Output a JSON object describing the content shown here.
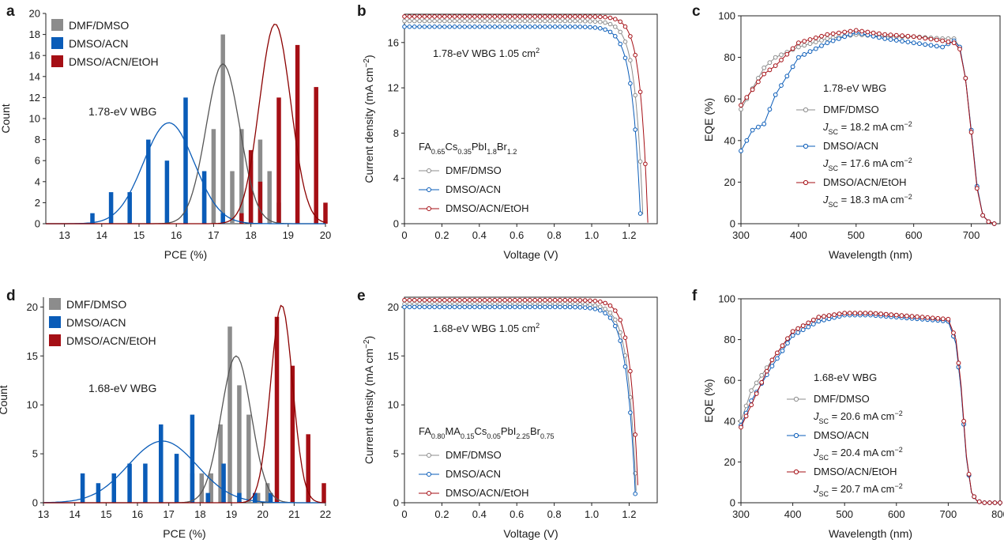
{
  "colors": {
    "dmf": "#8c8c8c",
    "acn": "#0a5cb8",
    "etoh": "#a50f15",
    "fit_dmf": "#555555",
    "fit_acn": "#0a5cb8",
    "fit_etoh": "#8b0000"
  },
  "legend": [
    "DMF/DMSO",
    "DMSO/ACN",
    "DMSO/ACN/EtOH"
  ],
  "chart_data": [
    {
      "panel": "a",
      "type": "bar",
      "xlabel": "PCE (%)",
      "ylabel": "Count",
      "xlim": [
        12.5,
        20
      ],
      "ylim": [
        0,
        20
      ],
      "xticks": [
        13,
        14,
        15,
        16,
        17,
        18,
        19,
        20
      ],
      "yticks": [
        0,
        2,
        4,
        6,
        8,
        10,
        12,
        14,
        16,
        18,
        20
      ],
      "annotation": "1.78-eV WBG",
      "series": [
        {
          "name": "DMF/DMSO",
          "color": "#8c8c8c",
          "centers": [
            16.25,
            16.75,
            17,
            17.25,
            17.5,
            17.75,
            18,
            18.25,
            18.5,
            18.75
          ],
          "counts": [
            1,
            3,
            9,
            18,
            5,
            9,
            6,
            8,
            5,
            2
          ],
          "fit": {
            "mu": 17.25,
            "sigma": 0.45,
            "peak": 15.2
          }
        },
        {
          "name": "DMSO/ACN",
          "color": "#0a5cb8",
          "centers": [
            13.75,
            14.25,
            14.75,
            15.25,
            15.75,
            16.25,
            16.75,
            17.25
          ],
          "counts": [
            1,
            3,
            3,
            8,
            6,
            12,
            5,
            1
          ],
          "fit": {
            "mu": 15.8,
            "sigma": 0.68,
            "peak": 9.6
          }
        },
        {
          "name": "DMSO/ACN/EtOH",
          "color": "#a50f15",
          "centers": [
            17.75,
            18,
            18.25,
            18.75,
            19.25,
            19.75,
            20
          ],
          "counts": [
            1,
            7,
            4,
            12,
            17,
            13,
            2
          ],
          "fit": {
            "mu": 18.65,
            "sigma": 0.42,
            "peak": 19
          }
        }
      ]
    },
    {
      "panel": "b",
      "type": "line",
      "xlabel": "Voltage (V)",
      "ylabel": "Current density (mA cm",
      "ylabel_sup": "−2",
      "ylabel_end": ")",
      "xlim": [
        0,
        1.35
      ],
      "ylim": [
        0,
        18.5
      ],
      "xticks": [
        "0",
        "0.2",
        "0.4",
        "0.6",
        "0.8",
        "1.0",
        "1.2"
      ],
      "yticks": [
        "0",
        "4",
        "8",
        "12",
        "16"
      ],
      "annotation": "1.78-eV WBG 1.05 cm",
      "annotation_sup": "2",
      "composition": [
        {
          "t": "FA",
          "s": false
        },
        {
          "t": "0.65",
          "s": true
        },
        {
          "t": "Cs",
          "s": false
        },
        {
          "t": "0.35",
          "s": true
        },
        {
          "t": "PbI",
          "s": false
        },
        {
          "t": "1.8",
          "s": true
        },
        {
          "t": "Br",
          "s": false
        },
        {
          "t": "1.2",
          "s": true
        }
      ],
      "series": [
        {
          "name": "DMF/DMSO",
          "color": "#8c8c8c",
          "jsc": 17.9,
          "voc": 1.275,
          "n": 0.042
        },
        {
          "name": "DMSO/ACN",
          "color": "#0a5cb8",
          "jsc": 17.4,
          "voc": 1.262,
          "n": 0.045
        },
        {
          "name": "DMSO/ACN/EtOH",
          "color": "#a50f15",
          "jsc": 18.3,
          "voc": 1.3,
          "n": 0.04
        }
      ]
    },
    {
      "panel": "c",
      "type": "line",
      "xlabel": "Wavelength (nm)",
      "ylabel": "EQE (%)",
      "xlim": [
        300,
        750
      ],
      "ylim": [
        0,
        100
      ],
      "xticks": [
        300,
        400,
        500,
        600,
        700
      ],
      "yticks": [
        0,
        20,
        40,
        60,
        80,
        100
      ],
      "annotation": "1.78-eV WBG",
      "series": [
        {
          "name": "DMF/DMSO",
          "color": "#8c8c8c",
          "jsc": "= 18.2 mA cm",
          "x": [
            300,
            340,
            360,
            400,
            450,
            500,
            550,
            600,
            650,
            670,
            680,
            690,
            700,
            710,
            720,
            730,
            740
          ],
          "y": [
            55,
            75,
            80,
            85,
            89,
            91,
            90,
            90,
            89,
            89,
            85,
            70,
            45,
            18,
            4,
            1,
            0
          ]
        },
        {
          "name": "DMSO/ACN",
          "color": "#0a5cb8",
          "jsc": "= 17.6 mA cm",
          "x": [
            300,
            320,
            340,
            360,
            400,
            450,
            500,
            550,
            600,
            650,
            670,
            680,
            690,
            700,
            710,
            720,
            730,
            740
          ],
          "y": [
            35,
            45,
            48,
            62,
            80,
            87,
            92,
            89,
            87,
            85,
            88,
            85,
            70,
            45,
            18,
            4,
            1,
            0
          ]
        },
        {
          "name": "DMSO/ACN/EtOH",
          "color": "#a50f15",
          "jsc": "= 18.3 mA cm",
          "x": [
            300,
            340,
            360,
            400,
            450,
            500,
            550,
            600,
            650,
            670,
            680,
            690,
            700,
            710,
            720,
            730,
            740
          ],
          "y": [
            57,
            72,
            76,
            87,
            91,
            93,
            91,
            90,
            88,
            87,
            84,
            70,
            44,
            17,
            4,
            1,
            0
          ]
        }
      ]
    },
    {
      "panel": "d",
      "type": "bar",
      "xlabel": "PCE (%)",
      "ylabel": "Count",
      "xlim": [
        13,
        22
      ],
      "ylim": [
        0,
        21
      ],
      "xticks": [
        13,
        14,
        15,
        16,
        17,
        18,
        19,
        20,
        21,
        22
      ],
      "yticks": [
        0,
        5,
        10,
        15,
        20
      ],
      "annotation": "1.68-eV WBG",
      "series": [
        {
          "name": "DMF/DMSO",
          "color": "#8c8c8c",
          "centers": [
            17.75,
            18.05,
            18.35,
            18.65,
            18.95,
            19.25,
            19.55,
            19.85,
            20.15
          ],
          "counts": [
            3,
            3,
            3,
            8,
            18,
            12,
            9,
            1,
            2
          ],
          "fit": {
            "mu": 19.15,
            "sigma": 0.48,
            "peak": 15
          }
        },
        {
          "name": "DMSO/ACN",
          "color": "#0a5cb8",
          "centers": [
            14.25,
            14.75,
            15.25,
            15.75,
            16.25,
            16.75,
            17.25,
            17.75,
            18.25,
            18.75,
            19.25,
            19.75,
            20.25
          ],
          "counts": [
            3,
            2,
            3,
            4,
            4,
            8,
            5,
            9,
            1,
            4,
            1,
            1,
            1
          ],
          "fit": {
            "mu": 16.8,
            "sigma": 1.1,
            "peak": 6.3
          }
        },
        {
          "name": "DMSO/ACN/EtOH",
          "color": "#a50f15",
          "centers": [
            20.45,
            20.95,
            21.45,
            21.95
          ],
          "counts": [
            19,
            14,
            7,
            2
          ],
          "fit": {
            "mu": 20.6,
            "sigma": 0.35,
            "peak": 20.2
          }
        }
      ]
    },
    {
      "panel": "e",
      "type": "line",
      "xlabel": "Voltage (V)",
      "ylabel": "Current density (mA cm",
      "ylabel_sup": "−2",
      "ylabel_end": ")",
      "xlim": [
        0,
        1.35
      ],
      "ylim": [
        0,
        21
      ],
      "xticks": [
        "0",
        "0.2",
        "0.4",
        "0.6",
        "0.8",
        "1.0",
        "1.2"
      ],
      "yticks": [
        "0",
        "5",
        "10",
        "15",
        "20"
      ],
      "annotation": "1.68-eV WBG 1.05 cm",
      "annotation_sup": "2",
      "composition": [
        {
          "t": "FA",
          "s": false
        },
        {
          "t": "0.80",
          "s": true
        },
        {
          "t": "MA",
          "s": false
        },
        {
          "t": "0.15",
          "s": true
        },
        {
          "t": "Cs",
          "s": false
        },
        {
          "t": "0.05",
          "s": true
        },
        {
          "t": "PbI",
          "s": false
        },
        {
          "t": "2.25",
          "s": true
        },
        {
          "t": "Br",
          "s": false
        },
        {
          "t": "0.75",
          "s": true
        }
      ],
      "series": [
        {
          "name": "DMF/DMSO",
          "color": "#8c8c8c",
          "jsc": 20.3,
          "voc": 1.24,
          "n": 0.045
        },
        {
          "name": "DMSO/ACN",
          "color": "#0a5cb8",
          "jsc": 20.0,
          "voc": 1.235,
          "n": 0.047
        },
        {
          "name": "DMSO/ACN/EtOH",
          "color": "#a50f15",
          "jsc": 20.7,
          "voc": 1.25,
          "n": 0.042
        }
      ]
    },
    {
      "panel": "f",
      "type": "line",
      "xlabel": "Wavelength (nm)",
      "ylabel": "EQE (%)",
      "xlim": [
        300,
        800
      ],
      "ylim": [
        0,
        100
      ],
      "xticks": [
        300,
        400,
        500,
        600,
        700,
        800
      ],
      "yticks": [
        0,
        20,
        40,
        60,
        80,
        100
      ],
      "annotation": "1.68-eV WBG",
      "series": [
        {
          "name": "DMF/DMSO",
          "color": "#8c8c8c",
          "jsc": "= 20.6 mA cm",
          "x": [
            300,
            320,
            360,
            400,
            450,
            500,
            550,
            600,
            650,
            700,
            715,
            725,
            735,
            745,
            755,
            765,
            780,
            800
          ],
          "y": [
            40,
            55,
            70,
            84,
            91,
            93,
            93,
            92,
            91,
            89,
            78,
            55,
            22,
            5,
            1,
            0,
            0,
            0
          ]
        },
        {
          "name": "DMSO/ACN",
          "color": "#0a5cb8",
          "jsc": "= 20.4 mA cm",
          "x": [
            300,
            320,
            360,
            400,
            450,
            500,
            550,
            600,
            650,
            700,
            715,
            725,
            735,
            745,
            755,
            765,
            780,
            800
          ],
          "y": [
            38,
            50,
            67,
            82,
            89,
            92,
            92,
            91,
            90,
            89,
            78,
            55,
            22,
            5,
            1,
            0,
            0,
            0
          ]
        },
        {
          "name": "DMSO/ACN/EtOH",
          "color": "#a50f15",
          "jsc": "= 20.7 mA cm",
          "x": [
            300,
            320,
            360,
            400,
            450,
            500,
            550,
            600,
            650,
            700,
            715,
            725,
            735,
            745,
            755,
            765,
            780,
            800
          ],
          "y": [
            37,
            48,
            70,
            84,
            91,
            93,
            93,
            92,
            91,
            90,
            80,
            57,
            23,
            5,
            1,
            0,
            0,
            0
          ]
        }
      ]
    }
  ],
  "labels": {
    "jsc_sym": "J",
    "jsc_sub": "SC",
    "jsc_sup": "−2"
  }
}
